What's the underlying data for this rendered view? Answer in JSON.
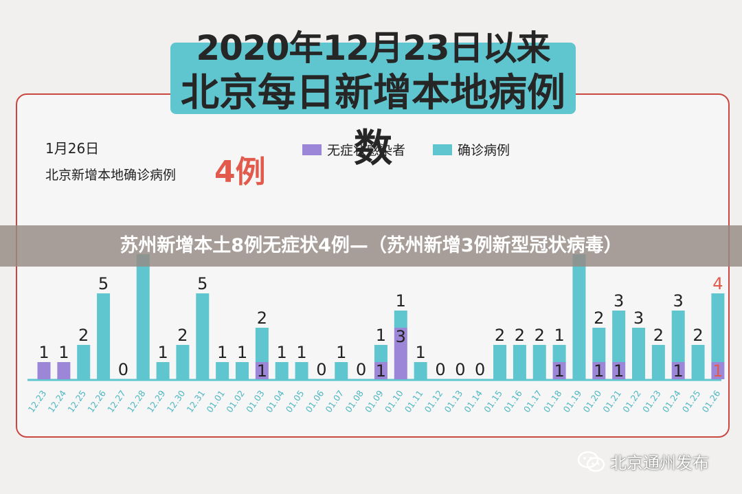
{
  "header": {
    "title_line1": "2020年12月23日以来",
    "title_line2": "北京每日新增本地病例数"
  },
  "summary": {
    "date": "1月26日",
    "label": "北京新增本地确诊病例",
    "count": "4例"
  },
  "legend": [
    {
      "label": "无症状感染者",
      "color": "#9c86d8"
    },
    {
      "label": "确诊病例",
      "color": "#5fc6cf"
    }
  ],
  "banner": {
    "text": "苏州新增本土8例无症状4例—（苏州新增3例新型冠状病毒）"
  },
  "watermark": {
    "text": "北京通州发布",
    "icon": "wechat-icon"
  },
  "chart_data": {
    "type": "bar",
    "stacked": true,
    "categories": [
      "12.23",
      "12.24",
      "12.25",
      "12.26",
      "12.27",
      "12.28",
      "12.29",
      "12.30",
      "12.31",
      "01.01",
      "01.02",
      "01.03",
      "01.04",
      "01.05",
      "01.06",
      "01.07",
      "01.08",
      "01.09",
      "01.10",
      "01.11",
      "01.12",
      "01.13",
      "01.14",
      "01.15",
      "01.16",
      "01.17",
      "01.18",
      "01.19",
      "01.20",
      "01.21",
      "01.22",
      "01.23",
      "01.24",
      "01.25",
      "01.26"
    ],
    "series": [
      {
        "name": "无症状感染者",
        "color": "#9c86d8",
        "values": [
          1,
          1,
          0,
          0,
          0,
          0,
          0,
          0,
          0,
          0,
          0,
          1,
          0,
          0,
          0,
          0,
          0,
          1,
          3,
          0,
          0,
          0,
          0,
          0,
          0,
          0,
          1,
          0,
          1,
          1,
          0,
          0,
          1,
          0,
          1
        ]
      },
      {
        "name": "确诊病例",
        "color": "#5fc6cf",
        "values": [
          0,
          0,
          2,
          5,
          0,
          null,
          1,
          2,
          5,
          1,
          1,
          2,
          1,
          1,
          0,
          1,
          0,
          1,
          1,
          1,
          0,
          0,
          0,
          2,
          2,
          2,
          1,
          null,
          2,
          3,
          3,
          2,
          3,
          2,
          4
        ]
      }
    ],
    "hidden_value_note": "",
    "highlight_color": "#e25a4b",
    "xlabel": "",
    "ylabel": ""
  }
}
